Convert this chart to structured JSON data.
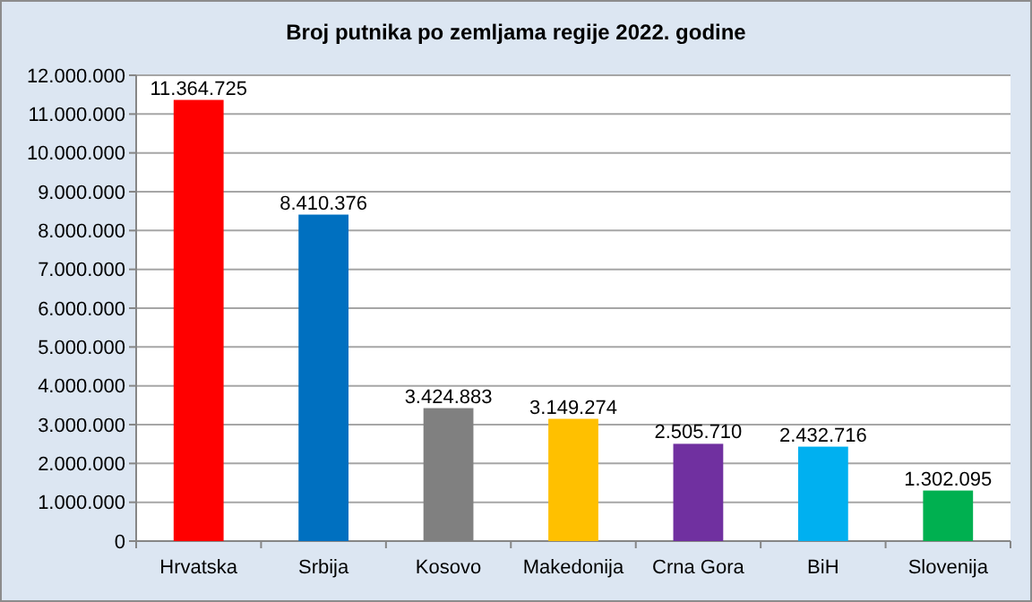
{
  "chart_data": {
    "type": "bar",
    "title": "Broj putnika po zemljama regije 2022. godine",
    "categories": [
      "Hrvatska",
      "Srbija",
      "Kosovo",
      "Makedonija",
      "Crna Gora",
      "BiH",
      "Slovenija"
    ],
    "values": [
      11364725,
      8410376,
      3424883,
      3149274,
      2505710,
      2432716,
      1302095
    ],
    "colors": [
      "#ff0000",
      "#0070c0",
      "#808080",
      "#ffc000",
      "#7030a0",
      "#00b0f0",
      "#00b050"
    ],
    "value_labels": [
      "11.364.725",
      "8.410.376",
      "3.424.883",
      "3.149.274",
      "2.505.710",
      "2.432.716",
      "1.302.095"
    ],
    "ylim": [
      0,
      12000000
    ],
    "yticks": [
      {
        "value": 0,
        "label": "0"
      },
      {
        "value": 1000000,
        "label": "1.000.000"
      },
      {
        "value": 2000000,
        "label": "2.000.000"
      },
      {
        "value": 3000000,
        "label": "3.000.000"
      },
      {
        "value": 4000000,
        "label": "4.000.000"
      },
      {
        "value": 5000000,
        "label": "5.000.000"
      },
      {
        "value": 6000000,
        "label": "6.000.000"
      },
      {
        "value": 7000000,
        "label": "7.000.000"
      },
      {
        "value": 8000000,
        "label": "8.000.000"
      },
      {
        "value": 9000000,
        "label": "9.000.000"
      },
      {
        "value": 10000000,
        "label": "10.000.000"
      },
      {
        "value": 11000000,
        "label": "11.000.000"
      },
      {
        "value": 12000000,
        "label": "12.000.000"
      }
    ],
    "grid": "y"
  }
}
